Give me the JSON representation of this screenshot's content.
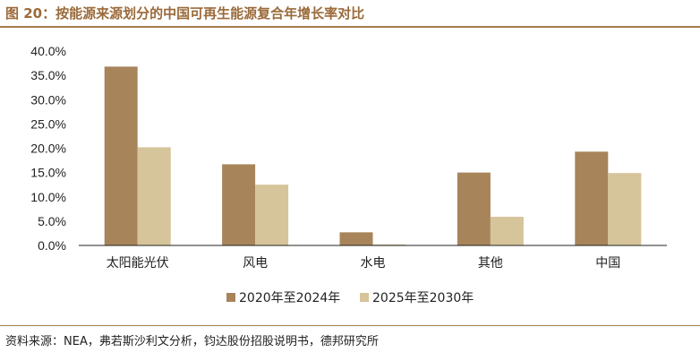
{
  "figure": {
    "title": "图 20：按能源来源划分的中国可再生能源复合年增长率对比",
    "source": "资料来源：NEA，弗若斯沙利文分析，钧达股份招股说明书，德邦研究所"
  },
  "colors": {
    "series1": "#a8845a",
    "series2": "#d6c49a",
    "rule": "#a57a4e",
    "title": "#9a6a3a"
  },
  "chart_data": {
    "type": "bar",
    "title": "",
    "xlabel": "",
    "ylabel": "",
    "categories": [
      "太阳能光伏",
      "风电",
      "水电",
      "其他",
      "中国"
    ],
    "series": [
      {
        "name": "2020年至2024年",
        "values": [
          36.8,
          16.7,
          2.7,
          15.0,
          19.3
        ]
      },
      {
        "name": "2025年至2030年",
        "values": [
          20.2,
          12.5,
          0.2,
          5.9,
          14.9
        ]
      }
    ],
    "ylim": [
      0,
      40
    ],
    "yticks": [
      "0.0%",
      "5.0%",
      "10.0%",
      "15.0%",
      "20.0%",
      "25.0%",
      "30.0%",
      "35.0%",
      "40.0%"
    ],
    "grid": false,
    "legend_position": "bottom-center"
  }
}
